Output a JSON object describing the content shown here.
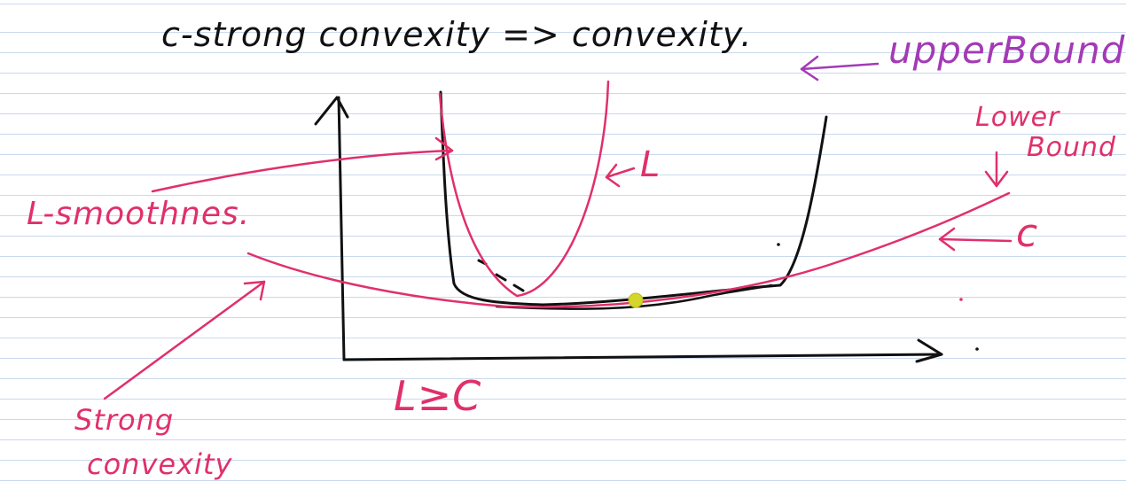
{
  "colors": {
    "ink": "#111111",
    "pink": "#e0306a",
    "purple": "#a23bb5",
    "point": "#d6d62a",
    "ruled_line": "#c9d9ee"
  },
  "labels": {
    "title": "c-strong convexity => convexity.",
    "upper_bound": "upperBound",
    "lower_bound_line1": "Lower",
    "lower_bound_line2": "Bound",
    "l_smoothness": "L-smoothnes.",
    "l_curve": "L",
    "c_curve": "c",
    "strong_convexity_line1": "Strong",
    "strong_convexity_line2": "convexity",
    "inequality": "L≥C"
  }
}
